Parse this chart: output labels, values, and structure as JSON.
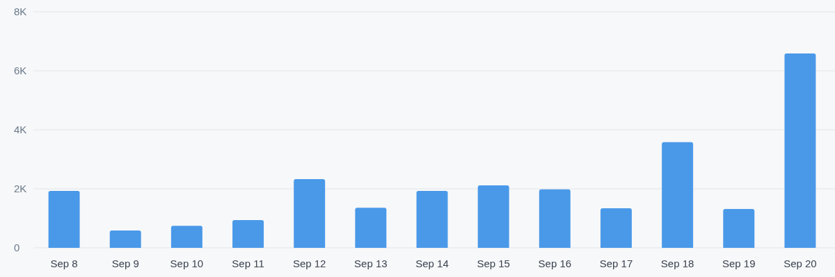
{
  "chart_data": {
    "type": "bar",
    "categories": [
      "Sep 8",
      "Sep 9",
      "Sep 10",
      "Sep 11",
      "Sep 12",
      "Sep 13",
      "Sep 14",
      "Sep 15",
      "Sep 16",
      "Sep 17",
      "Sep 18",
      "Sep 19",
      "Sep 20"
    ],
    "values": [
      1930,
      590,
      750,
      940,
      2330,
      1360,
      1930,
      2120,
      1980,
      1340,
      3580,
      1320,
      6590
    ],
    "color": "#4a99e9",
    "ylim": [
      0,
      8000
    ],
    "yticks": [
      {
        "value": 0,
        "label": "0"
      },
      {
        "value": 2000,
        "label": "2K"
      },
      {
        "value": 4000,
        "label": "4K"
      },
      {
        "value": 6000,
        "label": "6K"
      },
      {
        "value": 8000,
        "label": "8K"
      }
    ],
    "grid": "y"
  }
}
